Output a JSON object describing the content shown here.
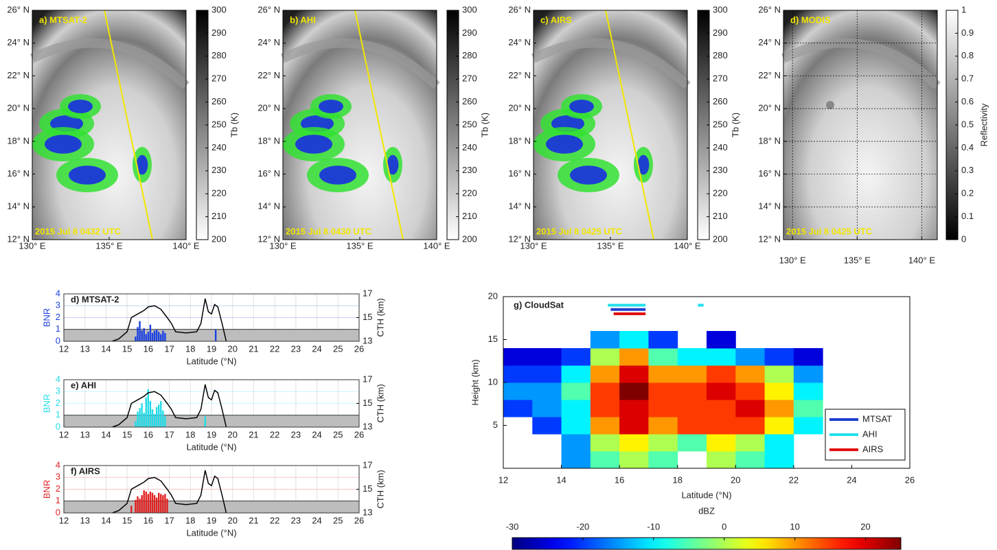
{
  "chart_data": [
    {
      "type": "image",
      "title": "a) MTSAT-2",
      "timestamp": "2015 Jul 8 0432 UTC",
      "xlim": [
        130,
        140
      ],
      "xticks": [
        {
          "value": 130,
          "label": "130° E"
        },
        {
          "value": 135,
          "label": "135° E"
        },
        {
          "value": 140,
          "label": "140° E"
        }
      ],
      "ylim": [
        12,
        26
      ],
      "yticks": [
        {
          "value": 12,
          "label": "12° N"
        },
        {
          "value": 14,
          "label": "14° N"
        },
        {
          "value": 16,
          "label": "16° N"
        },
        {
          "value": 18,
          "label": "18° N"
        },
        {
          "value": 20,
          "label": "20° N"
        },
        {
          "value": 22,
          "label": "22° N"
        },
        {
          "value": 24,
          "label": "24° N"
        },
        {
          "value": 26,
          "label": "26° N"
        }
      ],
      "grid": false,
      "colorbar": {
        "label": "Tb (K)",
        "colormap": "gray_r",
        "lim": [
          200,
          300
        ],
        "ticks": [
          200,
          210,
          220,
          230,
          240,
          250,
          260,
          270,
          280,
          290,
          300
        ]
      }
    },
    {
      "type": "image",
      "title": "b) AHI",
      "timestamp": "2015 Jul 8 0430 UTC",
      "xlim": [
        130,
        140
      ],
      "xticks": [
        {
          "value": 130,
          "label": "130° E"
        },
        {
          "value": 135,
          "label": "135° E"
        },
        {
          "value": 140,
          "label": "140° E"
        }
      ],
      "ylim": [
        12,
        26
      ],
      "yticks": [
        {
          "value": 12,
          "label": "12° N"
        },
        {
          "value": 14,
          "label": "14° N"
        },
        {
          "value": 16,
          "label": "16° N"
        },
        {
          "value": 18,
          "label": "18° N"
        },
        {
          "value": 20,
          "label": "20° N"
        },
        {
          "value": 22,
          "label": "22° N"
        },
        {
          "value": 24,
          "label": "24° N"
        },
        {
          "value": 26,
          "label": "26° N"
        }
      ],
      "grid": false,
      "colorbar": {
        "label": "Tb (K)",
        "colormap": "gray_r",
        "lim": [
          200,
          300
        ],
        "ticks": [
          200,
          210,
          220,
          230,
          240,
          250,
          260,
          270,
          280,
          290,
          300
        ]
      }
    },
    {
      "type": "image",
      "title": "c) AIRS",
      "timestamp": "2015 Jul 8 0425 UTC",
      "xlim": [
        130,
        140
      ],
      "xticks": [
        {
          "value": 130,
          "label": "130° E"
        },
        {
          "value": 135,
          "label": "135° E"
        },
        {
          "value": 140,
          "label": "140° E"
        }
      ],
      "ylim": [
        12,
        26
      ],
      "yticks": [
        {
          "value": 12,
          "label": "12° N"
        },
        {
          "value": 14,
          "label": "14° N"
        },
        {
          "value": 16,
          "label": "16° N"
        },
        {
          "value": 18,
          "label": "18° N"
        },
        {
          "value": 20,
          "label": "20° N"
        },
        {
          "value": 22,
          "label": "22° N"
        },
        {
          "value": 24,
          "label": "24° N"
        },
        {
          "value": 26,
          "label": "26° N"
        }
      ],
      "grid": false,
      "colorbar": {
        "label": "Tb (K)",
        "colormap": "gray_r",
        "lim": [
          200,
          300
        ],
        "ticks": [
          200,
          210,
          220,
          230,
          240,
          250,
          260,
          270,
          280,
          290,
          300
        ]
      }
    },
    {
      "type": "image",
      "title": "d) MODIS",
      "timestamp": "2015 Jul 8 0425 UTC",
      "xlim": [
        129.3,
        141.2
      ],
      "xticks": [
        {
          "value": 130,
          "label": "130° E"
        },
        {
          "value": 135,
          "label": "135° E"
        },
        {
          "value": 140,
          "label": "140° E"
        }
      ],
      "ylim": [
        12,
        26
      ],
      "yticks": [
        {
          "value": 12,
          "label": "12° N"
        },
        {
          "value": 14,
          "label": "14° N"
        },
        {
          "value": 16,
          "label": "16° N"
        },
        {
          "value": 18,
          "label": "18° N"
        },
        {
          "value": 20,
          "label": "20° N"
        },
        {
          "value": 22,
          "label": "22° N"
        },
        {
          "value": 24,
          "label": "24° N"
        },
        {
          "value": 26,
          "label": "26° N"
        }
      ],
      "grid": true,
      "colorbar": {
        "label": "Reflectivity",
        "colormap": "gray",
        "lim": [
          0,
          1
        ],
        "ticks": [
          0,
          0.1,
          0.2,
          0.3,
          0.4,
          0.5,
          0.6,
          0.7,
          0.8,
          0.9,
          1
        ]
      }
    },
    {
      "type": "combo",
      "title": "d) MTSAT-2",
      "x_label": "Latitude (°N)",
      "y_label": "BNR",
      "y2_label": "CTH (km)",
      "xlim": [
        12,
        26
      ],
      "xticks": [
        12,
        13,
        14,
        15,
        16,
        17,
        18,
        19,
        20,
        21,
        22,
        23,
        24,
        25,
        26
      ],
      "ylim": [
        0,
        4
      ],
      "yticks": [
        0,
        1,
        2,
        3,
        4
      ],
      "y2lim": [
        13,
        17
      ],
      "y2ticks": [
        13,
        15,
        17
      ],
      "threshold": 1,
      "grid": true,
      "bars": {
        "color": "#1a40e0",
        "x": [
          15.4,
          15.5,
          15.6,
          15.7,
          15.8,
          15.9,
          16.0,
          16.1,
          16.2,
          16.3,
          16.4,
          16.5,
          16.6,
          16.7,
          16.8,
          19.2
        ],
        "values": [
          0.4,
          1.2,
          1.7,
          0.9,
          1.1,
          0.6,
          0.8,
          1.4,
          0.7,
          0.9,
          1.0,
          0.8,
          0.6,
          0.9,
          0.7,
          1.0
        ]
      },
      "line": {
        "color": "#000000",
        "axis": "y2",
        "x": [
          14.3,
          14.6,
          15.0,
          15.2,
          15.5,
          15.8,
          16.0,
          16.3,
          16.6,
          16.9,
          17.1,
          17.3,
          17.8,
          18.3,
          18.5,
          18.7,
          18.85,
          19.0,
          19.15,
          19.3,
          19.5,
          19.7
        ],
        "values": [
          13.0,
          13.2,
          13.8,
          15.0,
          15.3,
          15.6,
          15.9,
          16.0,
          15.7,
          15.0,
          14.5,
          13.8,
          13.7,
          13.8,
          14.5,
          16.6,
          15.5,
          15.3,
          16.1,
          15.9,
          14.5,
          13.0
        ]
      }
    },
    {
      "type": "combo",
      "title": "e) AHI",
      "x_label": "Latitude (°N)",
      "y_label": "BNR",
      "y2_label": "CTH (km)",
      "xlim": [
        12,
        26
      ],
      "xticks": [
        12,
        13,
        14,
        15,
        16,
        17,
        18,
        19,
        20,
        21,
        22,
        23,
        24,
        25,
        26
      ],
      "ylim": [
        0,
        4
      ],
      "yticks": [
        0,
        1,
        2,
        3,
        4
      ],
      "y2lim": [
        13,
        17
      ],
      "y2ticks": [
        13,
        15,
        17
      ],
      "threshold": 1,
      "grid": true,
      "bars": {
        "color": "#22dbe8",
        "x": [
          15.4,
          15.5,
          15.6,
          15.7,
          15.8,
          15.9,
          16.0,
          16.1,
          16.2,
          16.3,
          16.4,
          16.5,
          16.6,
          16.7,
          16.8,
          18.7
        ],
        "values": [
          0.5,
          1.3,
          1.6,
          2.0,
          1.2,
          2.5,
          3.2,
          2.2,
          1.5,
          1.1,
          1.7,
          1.9,
          2.2,
          1.4,
          0.9,
          0.9
        ]
      },
      "line": {
        "color": "#000000",
        "axis": "y2",
        "x": [
          14.3,
          14.6,
          15.0,
          15.2,
          15.5,
          15.8,
          16.0,
          16.3,
          16.6,
          16.9,
          17.1,
          17.3,
          17.8,
          18.3,
          18.5,
          18.7,
          18.85,
          19.0,
          19.15,
          19.3,
          19.5,
          19.7
        ],
        "values": [
          13.0,
          13.2,
          13.8,
          15.0,
          15.3,
          15.6,
          15.9,
          16.0,
          15.7,
          15.0,
          14.5,
          13.8,
          13.7,
          13.8,
          14.5,
          16.6,
          15.5,
          15.3,
          16.1,
          15.9,
          14.5,
          13.0
        ]
      }
    },
    {
      "type": "combo",
      "title": "f) AIRS",
      "x_label": "Latitude (°N)",
      "y_label": "BNR",
      "y2_label": "CTH (km)",
      "xlim": [
        12,
        26
      ],
      "xticks": [
        12,
        13,
        14,
        15,
        16,
        17,
        18,
        19,
        20,
        21,
        22,
        23,
        24,
        25,
        26
      ],
      "ylim": [
        0,
        4
      ],
      "yticks": [
        0,
        1,
        2,
        3,
        4
      ],
      "y2lim": [
        13,
        17
      ],
      "y2ticks": [
        13,
        15,
        17
      ],
      "threshold": 1,
      "grid": true,
      "bars": {
        "color": "#e02020",
        "x": [
          15.2,
          15.4,
          15.5,
          15.6,
          15.7,
          15.8,
          15.9,
          16.0,
          16.1,
          16.2,
          16.3,
          16.4,
          16.5,
          16.6,
          16.7,
          16.8,
          16.9
        ],
        "values": [
          0.6,
          1.1,
          1.4,
          1.2,
          1.5,
          1.9,
          1.8,
          1.6,
          1.8,
          1.7,
          1.5,
          1.3,
          1.7,
          1.6,
          1.5,
          1.6,
          1.2
        ]
      },
      "line": {
        "color": "#000000",
        "axis": "y2",
        "x": [
          14.3,
          14.6,
          15.0,
          15.2,
          15.5,
          15.8,
          16.0,
          16.3,
          16.6,
          16.9,
          17.1,
          17.3,
          17.8,
          18.3,
          18.5,
          18.7,
          18.85,
          19.0,
          19.15,
          19.3,
          19.5,
          19.7
        ],
        "values": [
          13.0,
          13.2,
          13.8,
          15.0,
          15.3,
          15.6,
          15.9,
          16.0,
          15.7,
          15.0,
          14.5,
          13.8,
          13.7,
          13.8,
          14.5,
          16.6,
          15.5,
          15.3,
          16.1,
          15.9,
          14.5,
          13.0
        ]
      }
    },
    {
      "type": "heatmap",
      "title": "g) CloudSat",
      "x_label": "Latitude (°N)",
      "y_label": "Height (km)",
      "xlim": [
        12,
        26
      ],
      "xticks": [
        12,
        14,
        16,
        18,
        20,
        22,
        24,
        26
      ],
      "ylim": [
        0,
        20
      ],
      "yticks": [
        5,
        10,
        15,
        20
      ],
      "x_bins": [
        12,
        13,
        14,
        15,
        16,
        17,
        18,
        19,
        20,
        21,
        22,
        23
      ],
      "y_bins": [
        0,
        2,
        4,
        6,
        8,
        10,
        12,
        14,
        16
      ],
      "values": [
        [
          null,
          null,
          -15,
          -5,
          0,
          -5,
          null,
          0,
          -5,
          -10,
          null
        ],
        [
          null,
          null,
          -15,
          0,
          5,
          0,
          -5,
          5,
          0,
          -10,
          null
        ],
        [
          null,
          -20,
          -10,
          10,
          20,
          10,
          15,
          15,
          15,
          5,
          -10
        ],
        [
          -20,
          -15,
          -10,
          15,
          20,
          15,
          15,
          15,
          20,
          10,
          -5
        ],
        [
          -15,
          -15,
          -5,
          15,
          25,
          15,
          15,
          20,
          15,
          5,
          -10
        ],
        [
          -20,
          -20,
          -10,
          10,
          20,
          10,
          10,
          15,
          10,
          0,
          -15
        ],
        [
          -25,
          -25,
          -20,
          0,
          10,
          -5,
          -10,
          -10,
          -15,
          -20,
          -25
        ],
        [
          null,
          null,
          null,
          -15,
          -10,
          -20,
          null,
          -25,
          null,
          null,
          null
        ]
      ],
      "colorbar": {
        "label": "dBZ",
        "lim": [
          -30,
          25
        ],
        "ticks": [
          -30,
          -20,
          -10,
          0,
          10,
          20
        ]
      },
      "legend": "lower right",
      "series": [
        {
          "name": "MTSAT",
          "color": "#1f3fcf",
          "y": 18.5,
          "segments": [
            [
              15.7,
              16.9
            ]
          ]
        },
        {
          "name": "AHI",
          "color": "#22e0ee",
          "y": 19,
          "segments": [
            [
              15.6,
              16.9
            ],
            [
              18.7,
              18.9
            ]
          ]
        },
        {
          "name": "AIRS",
          "color": "#e01010",
          "y": 18,
          "segments": [
            [
              15.8,
              16.9
            ]
          ]
        }
      ]
    }
  ]
}
